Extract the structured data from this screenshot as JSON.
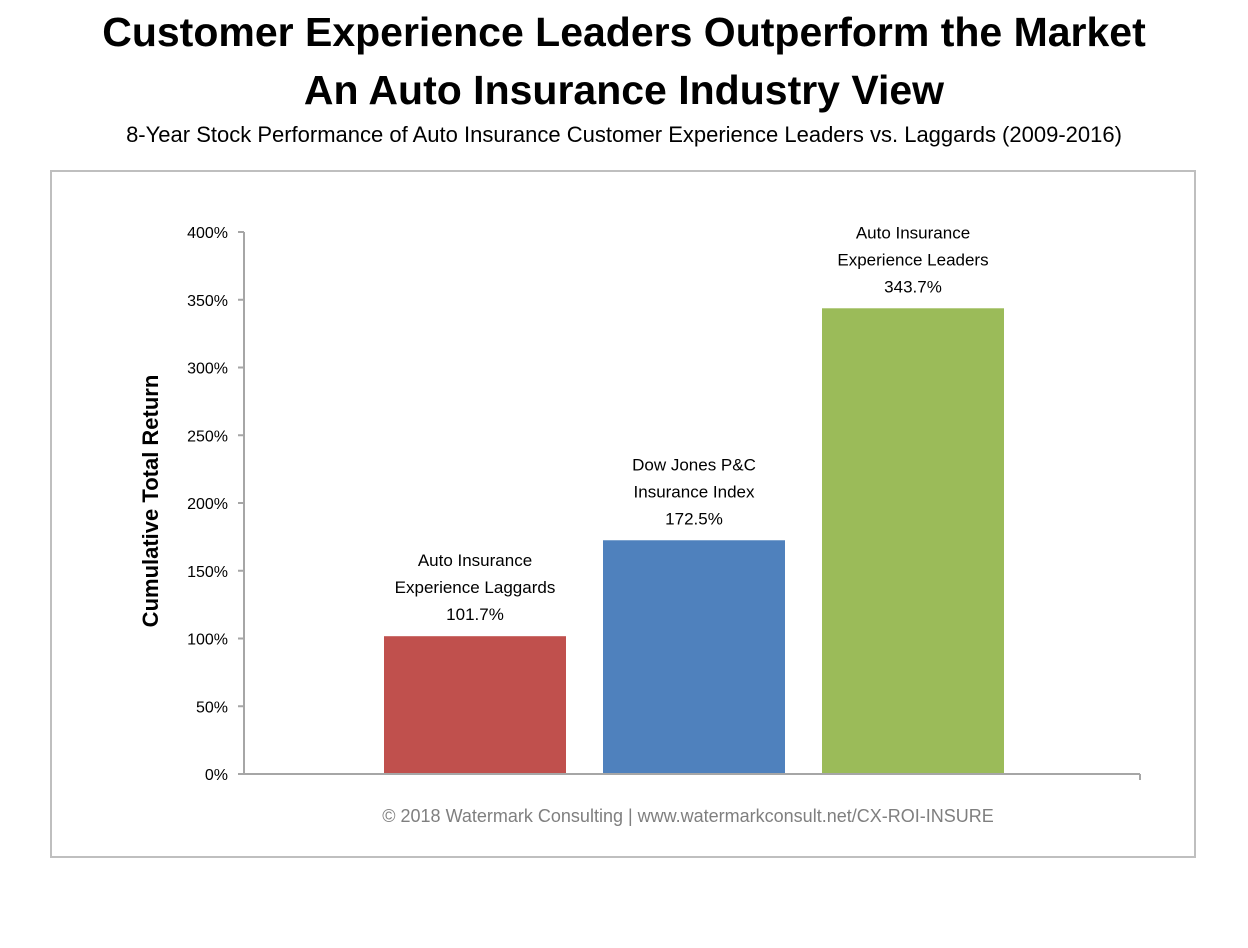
{
  "title_line1": "Customer Experience Leaders Outperform the Market",
  "title_line2": "An Auto Insurance Industry View",
  "subtitle": "8-Year Stock Performance of Auto Insurance Customer Experience Leaders vs. Laggards (2009-2016)",
  "chart_data": {
    "type": "bar",
    "title": "Customer Experience Leaders Outperform the Market",
    "ylabel": "Cumulative Total Return",
    "xlabel": "",
    "ylim": [
      0,
      400
    ],
    "yticks": [
      "0%",
      "50%",
      "100%",
      "150%",
      "200%",
      "250%",
      "300%",
      "350%",
      "400%"
    ],
    "grid": false,
    "bars": [
      {
        "label_lines": [
          "Auto Insurance",
          "Experience Laggards"
        ],
        "value": 101.7,
        "value_label": "101.7%",
        "color": "#c0504d"
      },
      {
        "label_lines": [
          "Dow Jones P&C",
          "Insurance Index"
        ],
        "value": 172.5,
        "value_label": "172.5%",
        "color": "#4f81bd"
      },
      {
        "label_lines": [
          "Auto Insurance",
          "Experience Leaders"
        ],
        "value": 343.7,
        "value_label": "343.7%",
        "color": "#9bbb59"
      }
    ],
    "footer": "© 2018 Watermark Consulting | www.watermarkconsult.net/CX-ROI-INSURE"
  }
}
